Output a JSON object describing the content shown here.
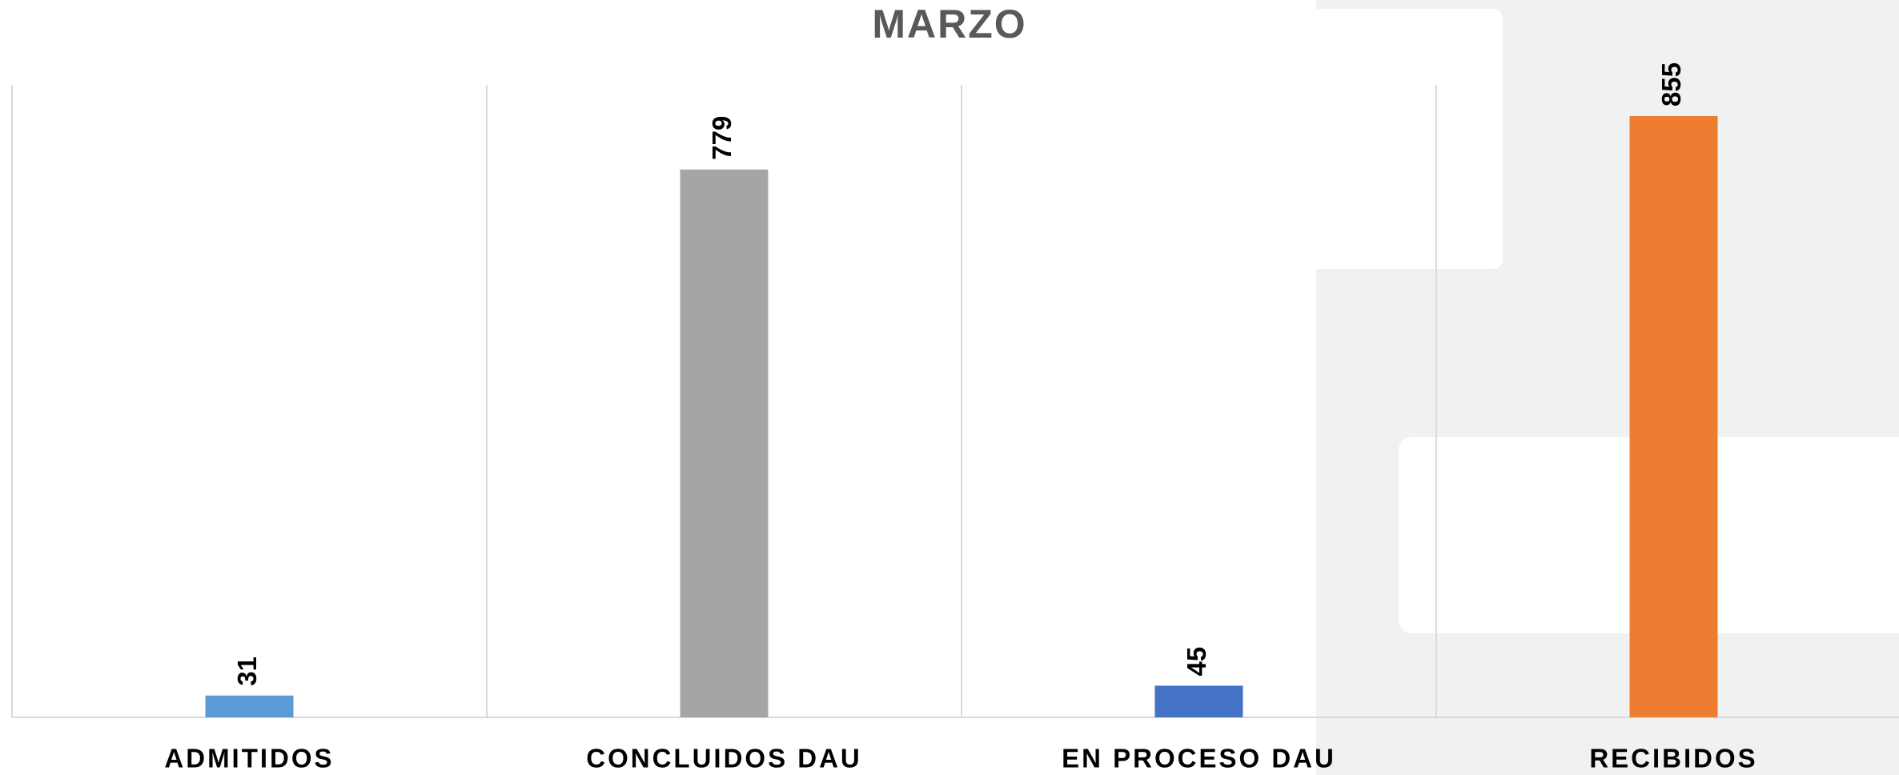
{
  "chart_data": {
    "type": "bar",
    "title": "MARZO",
    "categories": [
      "ADMITIDOS",
      "CONCLUIDOS DAU",
      "EN PROCESO DAU",
      "RECIBIDOS"
    ],
    "values": [
      31,
      779,
      45,
      855
    ],
    "colors": [
      "#5b9bd5",
      "#a5a5a5",
      "#4472c4",
      "#ed7d31"
    ],
    "grid": false
  }
}
